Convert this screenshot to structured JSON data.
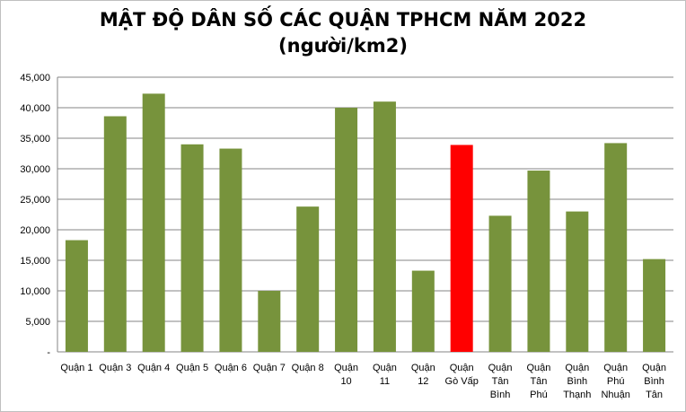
{
  "chart_data": {
    "type": "bar",
    "title": "MẬT ĐỘ DÂN SỐ CÁC QUẬN TPHCM NĂM 2022",
    "subtitle": "(người/km2)",
    "categories": [
      [
        "Quận 1"
      ],
      [
        "Quận 3"
      ],
      [
        "Quận 4"
      ],
      [
        "Quận 5"
      ],
      [
        "Quận 6"
      ],
      [
        "Quận 7"
      ],
      [
        "Quận 8"
      ],
      [
        "Quận",
        "10"
      ],
      [
        "Quận",
        "11"
      ],
      [
        "Quận",
        "12"
      ],
      [
        "Quận",
        "Gò Vấp"
      ],
      [
        "Quận",
        "Tân",
        "Bình"
      ],
      [
        "Quận",
        "Tân",
        "Phú"
      ],
      [
        "Quận",
        "Bình",
        "Thạnh"
      ],
      [
        "Quận",
        "Phú",
        "Nhuận"
      ],
      [
        "Quận",
        "Bình",
        "Tân"
      ]
    ],
    "values": [
      18300,
      38600,
      42300,
      34000,
      33300,
      10000,
      23800,
      40000,
      41000,
      13300,
      33900,
      22300,
      29700,
      23000,
      34200,
      15200
    ],
    "bar_colors": [
      "#77933C",
      "#77933C",
      "#77933C",
      "#77933C",
      "#77933C",
      "#77933C",
      "#77933C",
      "#77933C",
      "#77933C",
      "#77933C",
      "#FF0000",
      "#77933C",
      "#77933C",
      "#77933C",
      "#77933C",
      "#77933C"
    ],
    "y_ticks": [
      "-",
      "5,000",
      "10,000",
      "15,000",
      "20,000",
      "25,000",
      "30,000",
      "35,000",
      "40,000",
      "45,000"
    ],
    "ylim": [
      0,
      45000
    ],
    "grid": true,
    "legend": "none",
    "xlabel": "",
    "ylabel": ""
  }
}
